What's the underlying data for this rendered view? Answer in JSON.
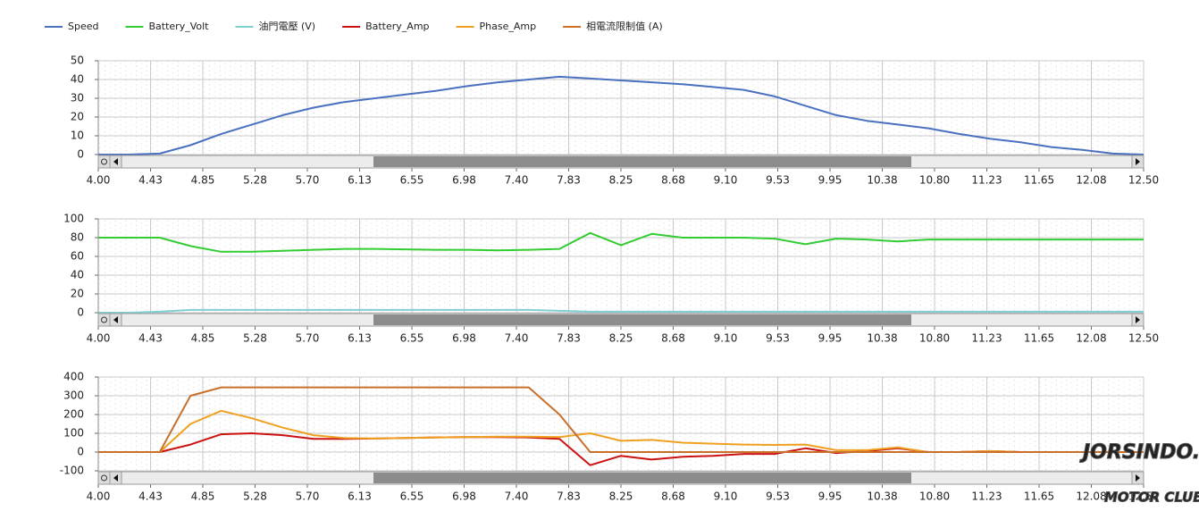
{
  "watermark": {
    "site": "JORSINDO.com",
    "club": "MOTOR CLUB"
  },
  "chart_data": [
    {
      "type": "line",
      "grid": true,
      "x": [
        4,
        4.25,
        4.5,
        4.75,
        5,
        5.25,
        5.5,
        5.75,
        6,
        6.25,
        6.5,
        6.75,
        7,
        7.25,
        7.5,
        7.75,
        8,
        8.25,
        8.5,
        8.75,
        9,
        9.25,
        9.5,
        9.75,
        10,
        10.25,
        10.5,
        10.75,
        11,
        11.25,
        11.5,
        11.75,
        12,
        12.25,
        12.5
      ],
      "xlim": [
        4,
        12.5
      ],
      "xticks": [
        {
          "value": 4,
          "label": "4.00"
        },
        {
          "value": 4.425,
          "label": "4.43"
        },
        4.85,
        {
          "value": 5.275,
          "label": "5.28"
        },
        {
          "value": 5.7,
          "label": "5.70"
        },
        {
          "value": 6.125,
          "label": "6.13"
        },
        6.55,
        {
          "value": 6.975,
          "label": "6.98"
        },
        {
          "value": 7.4,
          "label": "7.40"
        },
        {
          "value": 7.825,
          "label": "7.83"
        },
        8.25,
        {
          "value": 8.675,
          "label": "8.68"
        },
        {
          "value": 9.1,
          "label": "9.10"
        },
        {
          "value": 9.525,
          "label": "9.53"
        },
        9.95,
        {
          "value": 10.375,
          "label": "10.38"
        },
        {
          "value": 10.8,
          "label": "10.80"
        },
        {
          "value": 11.225,
          "label": "11.23"
        },
        11.65,
        {
          "value": 12.075,
          "label": "12.08"
        },
        {
          "value": 12.5,
          "label": "12.50"
        }
      ],
      "ylim": [
        0,
        50
      ],
      "yticks": [
        0,
        10,
        20,
        30,
        40,
        50
      ],
      "series": [
        {
          "name": "Speed",
          "color": "#4a70c0",
          "values": [
            0,
            0,
            0.5,
            5,
            11,
            16,
            21,
            25,
            28,
            30,
            32,
            34,
            36.5,
            38.5,
            40,
            41.5,
            40.5,
            39.5,
            38.5,
            37.5,
            36,
            34.5,
            31,
            26,
            21,
            18,
            16,
            14,
            11,
            8.5,
            6.5,
            4,
            2.5,
            0.5,
            0
          ]
        }
      ]
    },
    {
      "type": "line",
      "grid": true,
      "x": [
        4,
        4.25,
        4.5,
        4.75,
        5,
        5.25,
        5.5,
        5.75,
        6,
        6.25,
        6.5,
        6.75,
        7,
        7.25,
        7.5,
        7.75,
        8,
        8.25,
        8.5,
        8.75,
        9,
        9.25,
        9.5,
        9.75,
        10,
        10.25,
        10.5,
        10.75,
        11,
        11.25,
        11.5,
        11.75,
        12,
        12.25,
        12.5
      ],
      "xlim": [
        4,
        12.5
      ],
      "xticks": [
        {
          "value": 4,
          "label": "4.00"
        },
        {
          "value": 4.425,
          "label": "4.43"
        },
        4.85,
        {
          "value": 5.275,
          "label": "5.28"
        },
        {
          "value": 5.7,
          "label": "5.70"
        },
        {
          "value": 6.125,
          "label": "6.13"
        },
        6.55,
        {
          "value": 6.975,
          "label": "6.98"
        },
        {
          "value": 7.4,
          "label": "7.40"
        },
        {
          "value": 7.825,
          "label": "7.83"
        },
        8.25,
        {
          "value": 8.675,
          "label": "8.68"
        },
        {
          "value": 9.1,
          "label": "9.10"
        },
        {
          "value": 9.525,
          "label": "9.53"
        },
        9.95,
        {
          "value": 10.375,
          "label": "10.38"
        },
        {
          "value": 10.8,
          "label": "10.80"
        },
        {
          "value": 11.225,
          "label": "11.23"
        },
        11.65,
        {
          "value": 12.075,
          "label": "12.08"
        },
        {
          "value": 12.5,
          "label": "12.50"
        }
      ],
      "ylim": [
        0,
        100
      ],
      "yticks": [
        0,
        20,
        40,
        60,
        80,
        100
      ],
      "series": [
        {
          "name": "Battery_Volt",
          "color": "#33cc33",
          "values": [
            80,
            80,
            80,
            71,
            65,
            65,
            66,
            67,
            68,
            68,
            67.5,
            67,
            67,
            66.5,
            67,
            68,
            85,
            72,
            84,
            80,
            80,
            80,
            79,
            73,
            79,
            78,
            76,
            78,
            78,
            78,
            78,
            78,
            78,
            78,
            78
          ]
        },
        {
          "name": "油門電壓 (V)",
          "color": "#7fcfd3",
          "values": [
            0,
            0,
            1,
            3,
            3,
            3,
            3,
            3,
            3,
            3,
            3,
            3,
            3,
            3,
            3,
            2,
            1,
            1,
            1,
            1,
            1,
            1,
            1,
            1,
            1,
            1,
            1,
            1,
            1,
            1,
            1,
            1,
            1,
            1,
            1
          ]
        }
      ]
    },
    {
      "type": "line",
      "grid": true,
      "x": [
        4,
        4.25,
        4.5,
        4.75,
        5,
        5.25,
        5.5,
        5.75,
        6,
        6.25,
        6.5,
        6.75,
        7,
        7.25,
        7.5,
        7.75,
        8,
        8.25,
        8.5,
        8.75,
        9,
        9.25,
        9.5,
        9.75,
        10,
        10.25,
        10.5,
        10.75,
        11,
        11.25,
        11.5,
        11.75,
        12,
        12.25,
        12.5
      ],
      "xlim": [
        4,
        12.5
      ],
      "xticks": [
        {
          "value": 4,
          "label": "4.00"
        },
        {
          "value": 4.425,
          "label": "4.43"
        },
        4.85,
        {
          "value": 5.275,
          "label": "5.28"
        },
        {
          "value": 5.7,
          "label": "5.70"
        },
        {
          "value": 6.125,
          "label": "6.13"
        },
        6.55,
        {
          "value": 6.975,
          "label": "6.98"
        },
        {
          "value": 7.4,
          "label": "7.40"
        },
        {
          "value": 7.825,
          "label": "7.83"
        },
        8.25,
        {
          "value": 8.675,
          "label": "8.68"
        },
        {
          "value": 9.1,
          "label": "9.10"
        },
        {
          "value": 9.525,
          "label": "9.53"
        },
        9.95,
        {
          "value": 10.375,
          "label": "10.38"
        },
        {
          "value": 10.8,
          "label": "10.80"
        },
        {
          "value": 11.225,
          "label": "11.23"
        },
        11.65,
        {
          "value": 12.075,
          "label": "12.08"
        },
        {
          "value": 12.5,
          "label": "12.50"
        }
      ],
      "ylim": [
        -100,
        400
      ],
      "yticks": [
        -100,
        0,
        100,
        200,
        300,
        400
      ],
      "series": [
        {
          "name": "Battery_Amp",
          "color": "#cc1111",
          "values": [
            0,
            0,
            0,
            40,
            95,
            100,
            90,
            70,
            70,
            72,
            75,
            78,
            80,
            80,
            78,
            70,
            -70,
            -20,
            -40,
            -25,
            -20,
            -10,
            -10,
            20,
            -5,
            5,
            20,
            0,
            0,
            5,
            0,
            0,
            0,
            0,
            0
          ]
        },
        {
          "name": "Phase_Amp",
          "color": "#f0a020",
          "values": [
            0,
            0,
            0,
            150,
            220,
            180,
            130,
            90,
            75,
            72,
            75,
            78,
            80,
            82,
            82,
            80,
            100,
            60,
            65,
            50,
            45,
            40,
            38,
            40,
            10,
            10,
            25,
            0,
            0,
            5,
            0,
            0,
            0,
            0,
            0
          ]
        },
        {
          "name": "相電流限制值 (A)",
          "color": "#c8702a",
          "values": [
            0,
            0,
            0,
            300,
            345,
            345,
            345,
            345,
            345,
            345,
            345,
            345,
            345,
            345,
            345,
            200,
            0,
            0,
            0,
            0,
            0,
            0,
            0,
            0,
            0,
            0,
            0,
            0,
            0,
            0,
            0,
            0,
            0,
            0,
            0
          ]
        }
      ]
    }
  ]
}
